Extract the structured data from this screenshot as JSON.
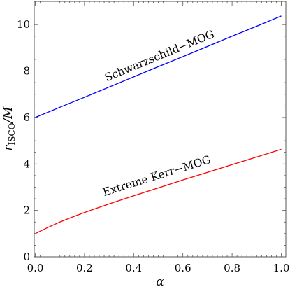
{
  "chart_data": {
    "type": "line",
    "title": "",
    "xlabel": "α",
    "ylabel_main": "r",
    "ylabel_sub": "ISCO",
    "ylabel_tail": "/M",
    "xlim": [
      0,
      1
    ],
    "ylim": [
      0,
      11
    ],
    "xticks": [
      0.0,
      0.2,
      0.4,
      0.6,
      0.8,
      1.0
    ],
    "xtick_labels": [
      "0.0",
      "0.2",
      "0.4",
      "0.6",
      "0.8",
      "1.0"
    ],
    "yticks": [
      0,
      2,
      4,
      6,
      8,
      10
    ],
    "ytick_labels": [
      "0",
      "2",
      "4",
      "6",
      "8",
      "10"
    ],
    "grid": false,
    "series": [
      {
        "name": "Schwarzschild−MOG",
        "color": "#0000ff",
        "x": [
          0,
          0.1,
          0.2,
          0.3,
          0.4,
          0.5,
          0.6,
          0.7,
          0.8,
          0.9,
          1.0
        ],
        "y": [
          6.0,
          6.44,
          6.87,
          7.31,
          7.75,
          8.19,
          8.62,
          9.06,
          9.5,
          9.93,
          10.37
        ]
      },
      {
        "name": "Extreme Kerr−MOG",
        "color": "#ff0000",
        "x": [
          0,
          0.05,
          0.1,
          0.15,
          0.2,
          0.3,
          0.4,
          0.5,
          0.6,
          0.7,
          0.8,
          0.9,
          1.0
        ],
        "y": [
          1.0,
          1.26,
          1.5,
          1.71,
          1.91,
          2.28,
          2.63,
          2.97,
          3.31,
          3.64,
          3.97,
          4.3,
          4.63
        ]
      }
    ],
    "annotations": [
      {
        "text": "Schwarzschild−MOG",
        "x": 0.29,
        "y": 7.55
      },
      {
        "text": "Extreme Kerr−MOG",
        "x": 0.28,
        "y": 2.62
      }
    ]
  }
}
